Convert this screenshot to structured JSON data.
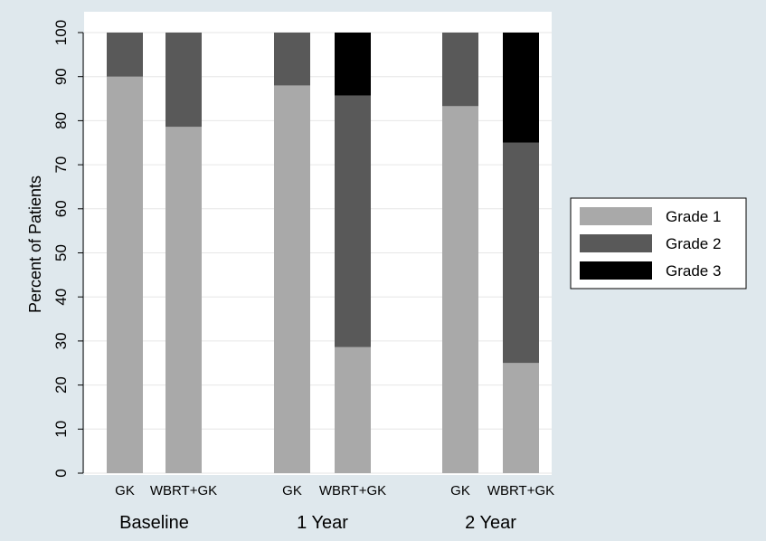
{
  "chart_data": {
    "type": "bar",
    "stacked": true,
    "ylabel": "Percent of Patients",
    "ylim": [
      0,
      100
    ],
    "yticks": [
      0,
      10,
      20,
      30,
      40,
      50,
      60,
      70,
      80,
      90,
      100
    ],
    "grid": true,
    "legend_position": "right",
    "groups": [
      {
        "label": "Baseline",
        "bars": [
          {
            "label": "GK",
            "values": [
              90,
              10,
              0
            ]
          },
          {
            "label": "WBRT+GK",
            "values": [
              78.6,
              21.4,
              0
            ]
          }
        ]
      },
      {
        "label": "1 Year",
        "bars": [
          {
            "label": "GK",
            "values": [
              88,
              12,
              0
            ]
          },
          {
            "label": "WBRT+GK",
            "values": [
              28.6,
              57.1,
              14.3
            ]
          }
        ]
      },
      {
        "label": "2 Year",
        "bars": [
          {
            "label": "GK",
            "values": [
              83.3,
              16.7,
              0
            ]
          },
          {
            "label": "WBRT+GK",
            "values": [
              25,
              50,
              25
            ]
          }
        ]
      }
    ],
    "series": [
      {
        "name": "Grade 1",
        "color": "#a9a9a9"
      },
      {
        "name": "Grade 2",
        "color": "#595959"
      },
      {
        "name": "Grade 3",
        "color": "#000000"
      }
    ]
  }
}
